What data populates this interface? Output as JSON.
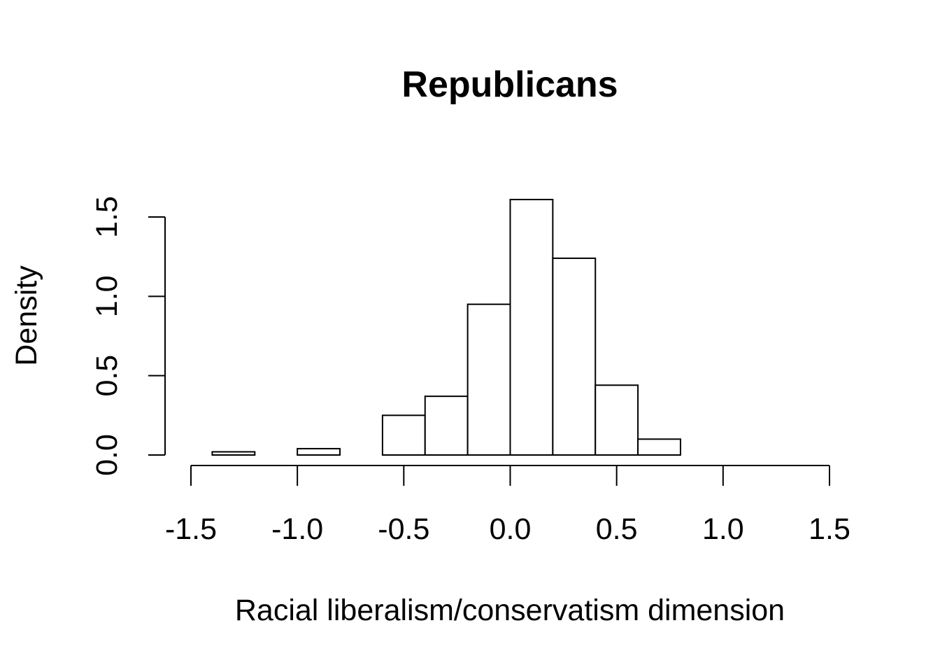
{
  "chart_data": {
    "type": "bar",
    "title": "Republicans",
    "xlabel": "Racial liberalism/conservatism dimension",
    "ylabel": "Density",
    "xlim": [
      -1.5,
      1.5
    ],
    "ylim": [
      0,
      1.5
    ],
    "xticks": [
      -1.5,
      -1.0,
      -0.5,
      0.0,
      0.5,
      1.0,
      1.5
    ],
    "xtick_labels": [
      "-1.5",
      "-1.0",
      "-0.5",
      "0.0",
      "0.5",
      "1.0",
      "1.5"
    ],
    "yticks": [
      0.0,
      0.5,
      1.0,
      1.5
    ],
    "ytick_labels": [
      "0.0",
      "0.5",
      "1.0",
      "1.5"
    ],
    "grid": false,
    "bins": [
      {
        "x0": -1.4,
        "x1": -1.2,
        "density": 0.02
      },
      {
        "x0": -1.2,
        "x1": -1.0,
        "density": 0.0
      },
      {
        "x0": -1.0,
        "x1": -0.8,
        "density": 0.04
      },
      {
        "x0": -0.8,
        "x1": -0.6,
        "density": 0.0
      },
      {
        "x0": -0.6,
        "x1": -0.4,
        "density": 0.25
      },
      {
        "x0": -0.4,
        "x1": -0.2,
        "density": 0.37
      },
      {
        "x0": -0.2,
        "x1": 0.0,
        "density": 0.95
      },
      {
        "x0": 0.0,
        "x1": 0.2,
        "density": 1.61
      },
      {
        "x0": 0.2,
        "x1": 0.4,
        "density": 1.24
      },
      {
        "x0": 0.4,
        "x1": 0.6,
        "density": 0.44
      },
      {
        "x0": 0.6,
        "x1": 0.8,
        "density": 0.1
      }
    ]
  }
}
